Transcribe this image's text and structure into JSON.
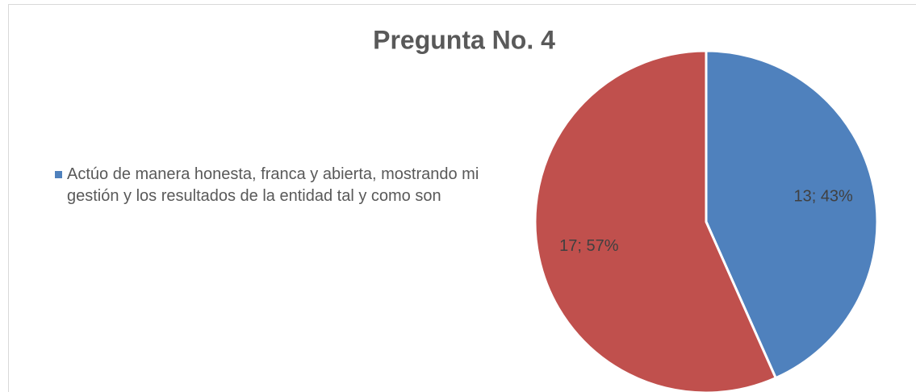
{
  "chart_data": {
    "type": "pie",
    "title": "Pregunta No. 4",
    "categories": [
      "Actúo de manera honesta, franca y abierta, mostrando mi gestión y los resultados de la entidad tal y como son",
      null
    ],
    "values": [
      13,
      17
    ],
    "value_labels": [
      "13; 43%",
      "17; 57%"
    ],
    "colors": [
      "#4f81bd",
      "#c0504d"
    ],
    "legend": "left"
  }
}
